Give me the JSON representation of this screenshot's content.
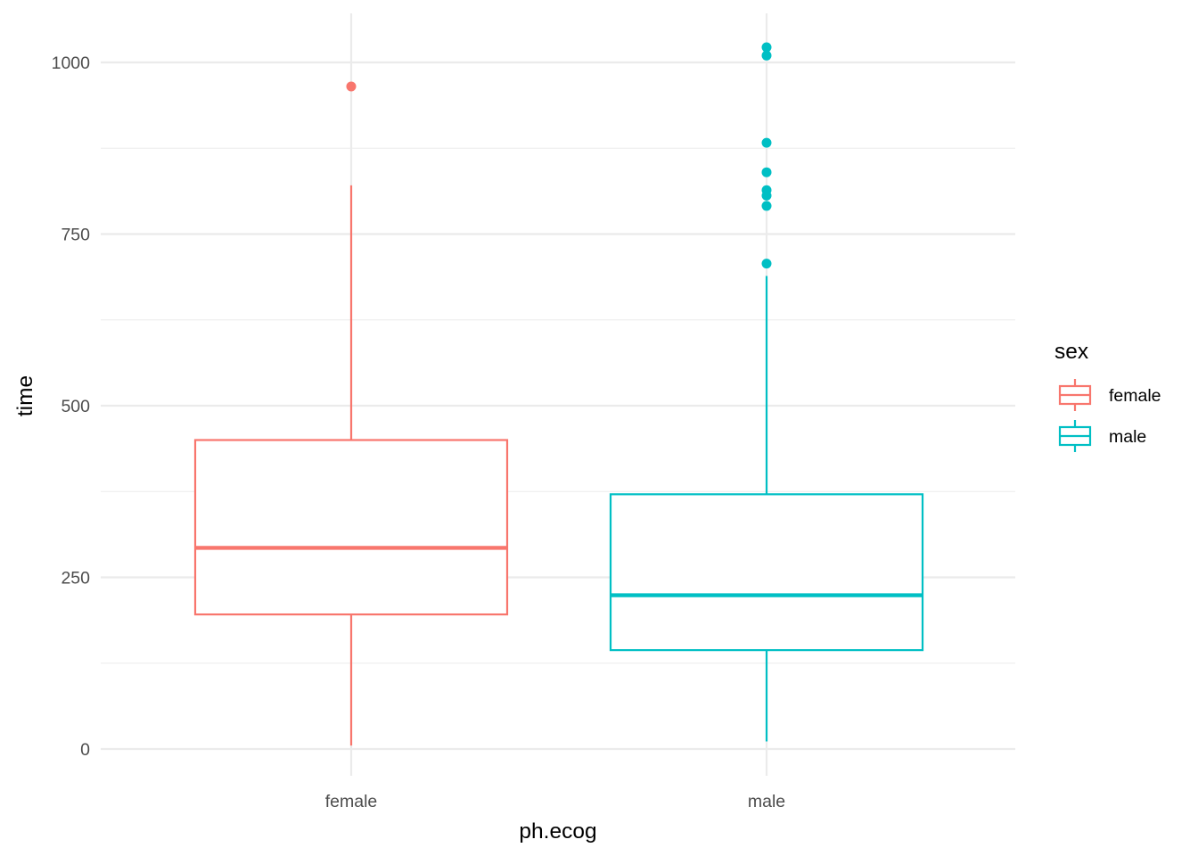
{
  "chart_data": {
    "type": "boxplot",
    "xlabel": "ph.ecog",
    "ylabel": "time",
    "ylim": [
      -30,
      1060
    ],
    "y_ticks": [
      0,
      250,
      500,
      750,
      1000
    ],
    "y_minor_ticks": [
      125,
      375,
      625,
      875
    ],
    "grid": true,
    "legend": {
      "title": "sex",
      "position": "right",
      "entries": [
        {
          "label": "female",
          "color": "#f8766d"
        },
        {
          "label": "male",
          "color": "#00bfc4"
        }
      ]
    },
    "categories": [
      "female",
      "male"
    ],
    "boxes": [
      {
        "category": "female",
        "group": "female",
        "color": "#f8766d",
        "whisker_low": 5,
        "q1": 196,
        "median": 293,
        "q3": 450,
        "whisker_high": 821,
        "outliers": [
          965
        ]
      },
      {
        "category": "male",
        "group": "male",
        "color": "#00bfc4",
        "whisker_low": 11,
        "q1": 144,
        "median": 224,
        "q3": 371,
        "whisker_high": 689,
        "outliers": [
          707,
          791,
          806,
          814,
          840,
          883,
          1010,
          1022
        ]
      }
    ]
  }
}
